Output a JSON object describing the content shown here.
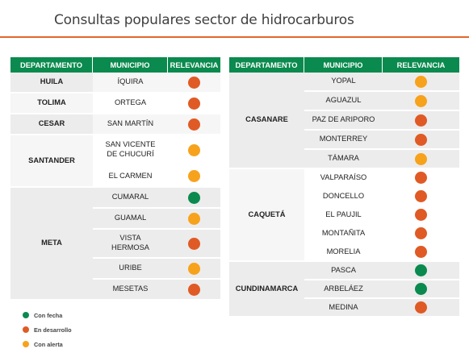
{
  "title": "Consultas populares sector de hidrocarburos",
  "colors": {
    "accent": "#e2672c",
    "header": "#0a8a4e",
    "green": "#0b8a50",
    "orange": "#e05a25",
    "yellow": "#f7a21c"
  },
  "headers": {
    "departamento": "DEPARTAMENTO",
    "municipio": "MUNICIPIO",
    "relevancia": "RELEVANCIA"
  },
  "left": {
    "huila": {
      "dept": "HUILA",
      "municipios": [
        {
          "name": "ÍQUIRA",
          "status": "orange"
        }
      ]
    },
    "tolima": {
      "dept": "TOLIMA",
      "municipios": [
        {
          "name": "ORTEGA",
          "status": "orange"
        }
      ]
    },
    "cesar": {
      "dept": "CESAR",
      "municipios": [
        {
          "name": "SAN MARTÍN",
          "status": "orange"
        }
      ]
    },
    "santander": {
      "dept": "SANTANDER",
      "municipios": [
        {
          "name": "SAN VICENTE DE CHUCURÍ",
          "status": "yellow"
        },
        {
          "name": "EL CARMEN",
          "status": "yellow"
        }
      ]
    },
    "meta": {
      "dept": "META",
      "municipios": [
        {
          "name": "CUMARAL",
          "status": "green"
        },
        {
          "name": "GUAMAL",
          "status": "yellow"
        },
        {
          "name": "VISTA HERMOSA",
          "status": "orange"
        },
        {
          "name": "URIBE",
          "status": "yellow"
        },
        {
          "name": "MESETAS",
          "status": "orange"
        }
      ]
    }
  },
  "right": {
    "casanare": {
      "dept": "CASANARE",
      "municipios": [
        {
          "name": "YOPAL",
          "status": "yellow"
        },
        {
          "name": "AGUAZUL",
          "status": "yellow"
        },
        {
          "name": "PAZ DE ARIPORO",
          "status": "orange"
        },
        {
          "name": "MONTERREY",
          "status": "orange"
        },
        {
          "name": "TÁMARA",
          "status": "yellow"
        }
      ]
    },
    "caqueta": {
      "dept": "CAQUETÁ",
      "municipios": [
        {
          "name": "VALPARAÍSO",
          "status": "orange"
        },
        {
          "name": "DONCELLO",
          "status": "orange"
        },
        {
          "name": "EL PAUJIL",
          "status": "orange"
        },
        {
          "name": "MONTAÑITA",
          "status": "orange"
        },
        {
          "name": "MORELIA",
          "status": "orange"
        }
      ]
    },
    "cundinamarca": {
      "dept": "CUNDINAMARCA",
      "municipios": [
        {
          "name": "PASCA",
          "status": "green"
        },
        {
          "name": "ARBELÁEZ",
          "status": "green"
        },
        {
          "name": "MEDINA",
          "status": "orange"
        }
      ]
    }
  },
  "legend": [
    {
      "label": "Con fecha",
      "status": "green"
    },
    {
      "label": "En desarrollo",
      "status": "orange"
    },
    {
      "label": "Con alerta",
      "status": "yellow"
    }
  ]
}
